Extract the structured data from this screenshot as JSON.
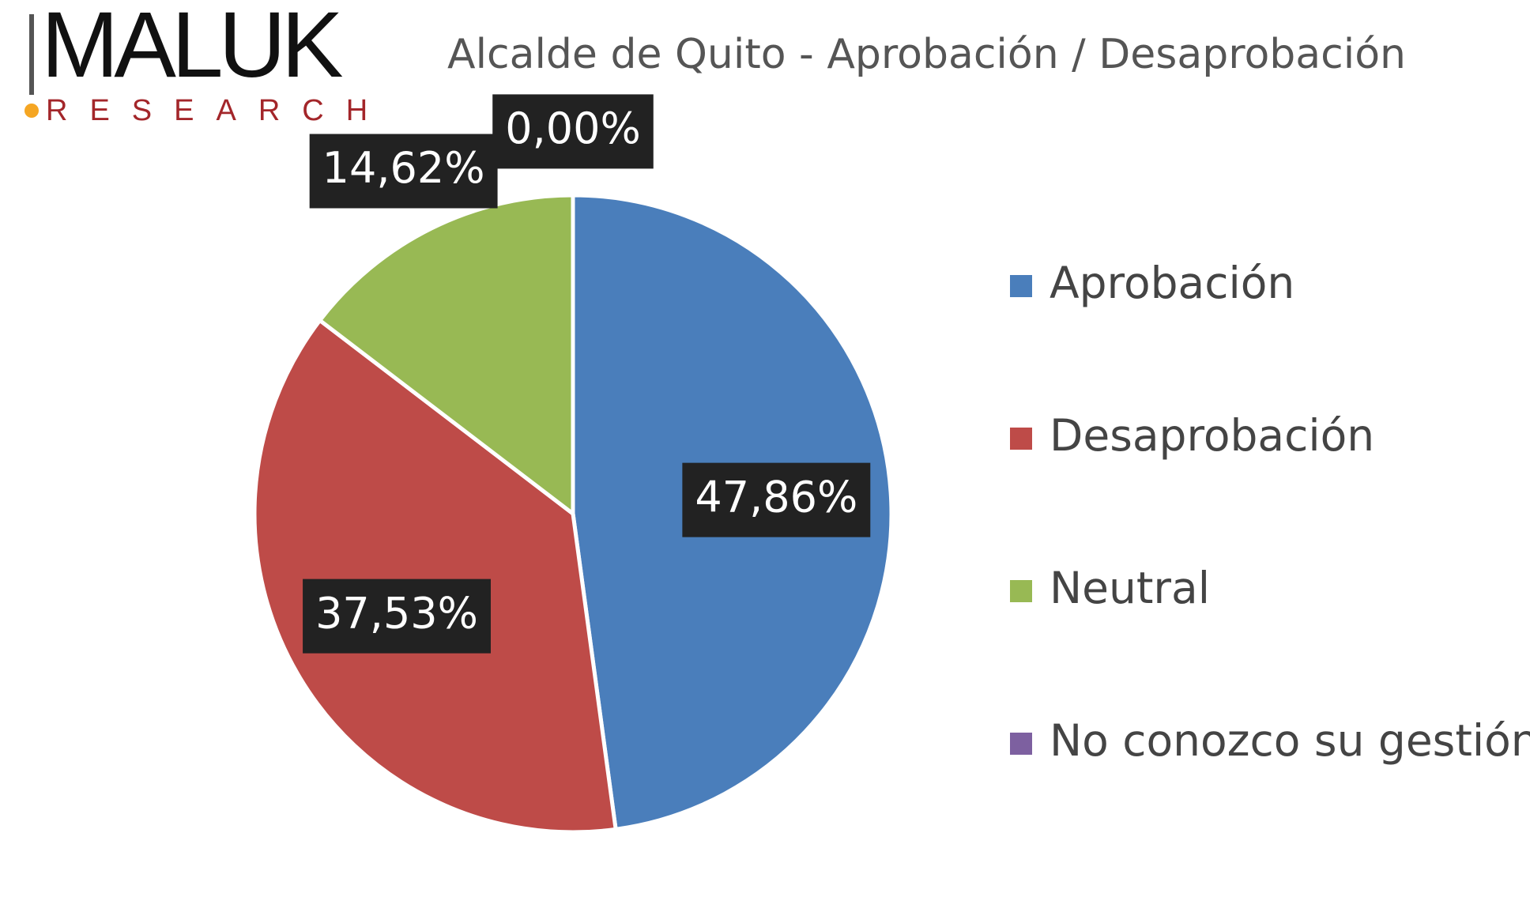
{
  "logo": {
    "name": "MALUK",
    "tagline": "RESEARCH"
  },
  "chart_data": {
    "type": "pie",
    "title": "Alcalde de Quito - Aprobación / Desaprobación",
    "categories": [
      "Aprobación",
      "Desaprobación",
      "Neutral",
      "No conozco su gestión"
    ],
    "values": [
      47.86,
      37.53,
      14.62,
      0.0
    ],
    "value_labels": [
      "47,86%",
      "37,53%",
      "14,62%",
      "0,00%"
    ],
    "colors": [
      "#4a7ebb",
      "#be4b48",
      "#98b954",
      "#7d60a0"
    ],
    "legend": "right"
  }
}
